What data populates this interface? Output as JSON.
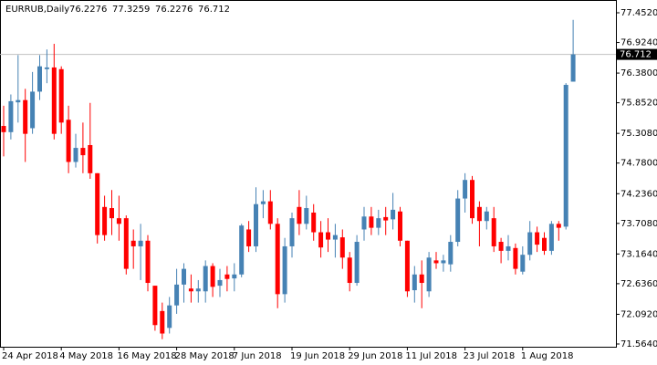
{
  "chart_data": {
    "type": "candlestick",
    "title": "EURRUB,Daily",
    "categories": [
      "24 Apr 2018",
      null,
      null,
      null,
      null,
      null,
      null,
      null,
      "4 May 2018",
      null,
      null,
      null,
      null,
      null,
      null,
      null,
      "16 May 2018",
      null,
      null,
      null,
      null,
      null,
      null,
      null,
      "28 May 2018",
      null,
      null,
      null,
      null,
      null,
      null,
      null,
      "7 Jun 2018",
      null,
      null,
      null,
      null,
      null,
      null,
      null,
      "19 Jun 2018",
      null,
      null,
      null,
      null,
      null,
      null,
      null,
      "29 Jun 2018",
      null,
      null,
      null,
      null,
      null,
      null,
      null,
      "11 Jul 2018",
      null,
      null,
      null,
      null,
      null,
      null,
      null,
      "23 Jul 2018",
      null,
      null,
      null,
      null,
      null,
      null,
      null,
      "1 Aug 2018",
      null,
      null,
      null,
      null,
      null,
      null,
      null
    ],
    "open": [
      75.44,
      75.33,
      75.86,
      75.9,
      75.4,
      76.05,
      76.45,
      76.48,
      76.45,
      75.55,
      74.8,
      75.05,
      75.1,
      74.6,
      74.0,
      73.98,
      73.8,
      73.8,
      73.4,
      73.3,
      73.4,
      72.6,
      72.15,
      71.85,
      72.25,
      72.62,
      72.55,
      72.5,
      72.5,
      72.95,
      72.6,
      72.8,
      72.73,
      72.8,
      73.6,
      73.3,
      74.05,
      74.1,
      73.7,
      72.45,
      73.3,
      74.0,
      73.7,
      73.9,
      73.55,
      73.55,
      73.42,
      73.46,
      73.1,
      72.65,
      73.6,
      73.83,
      73.63,
      73.82,
      73.78,
      73.92,
      73.4,
      72.52,
      72.8,
      72.5,
      73.05,
      73.0,
      72.98,
      73.38,
      74.15,
      74.48,
      74.0,
      73.75,
      73.8,
      73.38,
      73.22,
      73.27,
      72.85,
      73.15,
      73.55,
      73.45,
      73.22,
      73.7,
      73.65,
      76.2276
    ],
    "high": [
      75.8,
      76.0,
      76.7,
      76.1,
      76.4,
      76.7,
      76.8,
      76.9,
      76.5,
      75.8,
      75.3,
      75.5,
      75.85,
      74.6,
      74.2,
      74.3,
      74.2,
      73.85,
      73.6,
      73.7,
      73.5,
      72.6,
      72.3,
      72.4,
      72.9,
      73.0,
      72.8,
      72.7,
      73.05,
      73.0,
      72.9,
      72.95,
      73.0,
      73.7,
      73.75,
      74.35,
      74.3,
      74.3,
      73.8,
      73.45,
      73.9,
      74.3,
      74.2,
      74.05,
      73.75,
      73.8,
      73.7,
      73.6,
      73.2,
      73.5,
      74.0,
      74.0,
      73.95,
      74.0,
      74.25,
      74.0,
      73.4,
      72.95,
      73.05,
      73.2,
      73.2,
      73.15,
      73.5,
      74.3,
      74.6,
      74.55,
      74.1,
      74.0,
      74.0,
      73.45,
      73.5,
      73.35,
      73.3,
      73.75,
      73.65,
      73.55,
      73.75,
      73.75,
      76.2,
      77.3259
    ],
    "low": [
      74.9,
      75.2,
      75.5,
      74.8,
      75.3,
      75.9,
      76.2,
      75.2,
      75.3,
      74.6,
      74.7,
      74.6,
      74.5,
      73.35,
      73.4,
      73.5,
      73.4,
      72.8,
      72.9,
      72.7,
      72.5,
      71.8,
      71.65,
      71.75,
      72.1,
      72.3,
      72.3,
      72.3,
      72.3,
      72.4,
      72.4,
      72.5,
      72.5,
      72.75,
      73.2,
      73.2,
      73.8,
      73.6,
      72.2,
      72.3,
      73.1,
      73.5,
      73.6,
      73.4,
      73.1,
      73.2,
      73.1,
      72.9,
      72.5,
      72.6,
      73.4,
      73.5,
      73.5,
      73.5,
      73.6,
      73.3,
      72.4,
      72.3,
      72.2,
      72.4,
      72.9,
      72.85,
      72.85,
      73.3,
      73.9,
      73.7,
      73.3,
      73.6,
      73.2,
      73.0,
      73.05,
      72.8,
      72.8,
      73.05,
      73.2,
      73.15,
      73.15,
      73.4,
      73.6,
      76.2276
    ],
    "close": [
      75.33,
      75.88,
      75.9,
      75.3,
      76.05,
      76.5,
      76.48,
      75.3,
      75.5,
      74.8,
      75.05,
      74.92,
      74.6,
      73.5,
      73.5,
      73.8,
      73.7,
      72.9,
      73.3,
      73.4,
      72.65,
      71.9,
      71.75,
      72.25,
      72.62,
      72.9,
      72.5,
      72.55,
      72.95,
      72.58,
      72.7,
      72.72,
      72.8,
      73.67,
      73.3,
      74.05,
      74.1,
      73.7,
      72.45,
      73.3,
      73.8,
      73.7,
      73.98,
      73.55,
      73.28,
      73.42,
      73.5,
      73.1,
      72.65,
      73.38,
      73.83,
      73.63,
      73.8,
      73.76,
      73.95,
      73.4,
      72.5,
      72.8,
      72.65,
      73.1,
      73.0,
      73.05,
      73.38,
      74.15,
      74.48,
      73.8,
      73.75,
      73.92,
      73.3,
      73.22,
      73.3,
      72.9,
      73.15,
      73.55,
      73.33,
      73.22,
      73.7,
      73.63,
      76.17,
      76.712
    ],
    "up_color": "#4682b4",
    "down_color": "#ff0000",
    "ylim": [
      71.515,
      77.679
    ],
    "yticks": [
      {
        "value": 77.452,
        "label": "77.4520"
      },
      {
        "value": 76.924,
        "label": "76.9240"
      },
      {
        "value": 76.38,
        "label": "76.3800"
      },
      {
        "value": 75.852,
        "label": "75.8520"
      },
      {
        "value": 75.308,
        "label": "75.3080"
      },
      {
        "value": 74.78,
        "label": "74.7800"
      },
      {
        "value": 74.236,
        "label": "74.2360"
      },
      {
        "value": 73.708,
        "label": "73.7080"
      },
      {
        "value": 73.164,
        "label": "73.1640"
      },
      {
        "value": 72.636,
        "label": "72.6360"
      },
      {
        "value": 72.092,
        "label": "72.0920"
      },
      {
        "value": 71.564,
        "label": "71.5640"
      }
    ],
    "price_line_color": "#c0c0c0"
  }
}
